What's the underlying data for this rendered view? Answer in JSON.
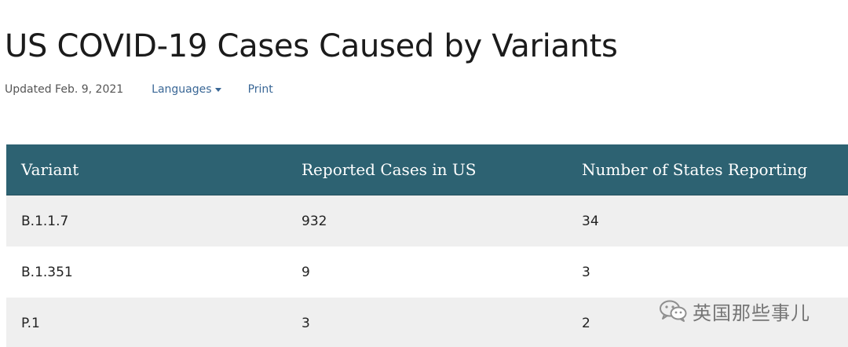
{
  "page": {
    "title": "US COVID-19 Cases Caused by Variants",
    "updated": "Updated Feb. 9, 2021",
    "languages_label": "Languages",
    "print_label": "Print"
  },
  "table": {
    "headers": [
      "Variant",
      "Reported Cases in US",
      "Number of States Reporting"
    ],
    "rows": [
      [
        "B.1.1.7",
        "932",
        "34"
      ],
      [
        "B.1.351",
        "9",
        "3"
      ],
      [
        "P.1",
        "3",
        "2"
      ]
    ]
  },
  "watermark": {
    "text": "英国那些事儿",
    "icon": "wechat-icon"
  },
  "colors": {
    "header_bg": "#2d6272",
    "link": "#3a6796",
    "stripe": "#efefef"
  }
}
